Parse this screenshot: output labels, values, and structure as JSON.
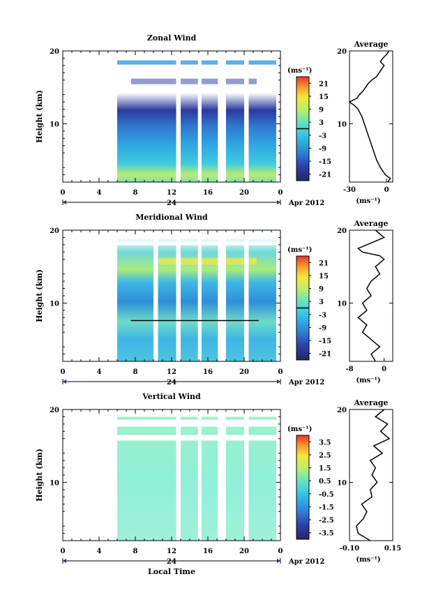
{
  "figure": {
    "xlabel": "Local Time",
    "date_label": "Apr 2012",
    "day_label": "24"
  },
  "colorbar_unit": "(ms⁻¹)",
  "chart_data": [
    {
      "type": "heatmap",
      "title": "Zonal Wind",
      "ylabel": "Height (km)",
      "xlim": [
        0,
        24
      ],
      "ylim": [
        2,
        20
      ],
      "x_ticks": [
        "0",
        "4",
        "8",
        "12",
        "16",
        "20",
        "0"
      ],
      "y_ticks": [
        "10",
        "20"
      ],
      "data_start_hour": 6,
      "gap_hours": [
        [
          12.5,
          13.0
        ],
        [
          14.9,
          15.3
        ],
        [
          17.1,
          18.0
        ],
        [
          20.0,
          20.5
        ]
      ],
      "colorbar": {
        "ticks": [
          "21",
          "15",
          "9",
          "3",
          "-3",
          "-9",
          "-15",
          "-21"
        ],
        "range": [
          -24,
          24
        ]
      },
      "profile": {
        "title": "Average",
        "xlim": [
          -30,
          5
        ],
        "x_ticks": [
          "-30",
          "0"
        ],
        "xlabel": "(ms⁻¹)",
        "heights": [
          2,
          2.5,
          3,
          3.5,
          4,
          5,
          6,
          7,
          8,
          9,
          10,
          11,
          12,
          12.5,
          13,
          13.5,
          14,
          14.5,
          15,
          15.5,
          16,
          16.5,
          17,
          17.5,
          18,
          18.5,
          19,
          19.5,
          20
        ],
        "values": [
          1,
          3,
          -1,
          -3,
          -5,
          -8,
          -10,
          -12,
          -14,
          -16,
          -18,
          -20,
          -23,
          -26,
          -30,
          -24,
          -22,
          -19,
          -17,
          -15,
          -12,
          -8,
          -6,
          -4,
          -2,
          -5,
          -3,
          0,
          2
        ]
      }
    },
    {
      "type": "heatmap",
      "title": "Meridional Wind",
      "ylabel": "Height (km)",
      "xlim": [
        0,
        24
      ],
      "ylim": [
        2,
        20
      ],
      "x_ticks": [
        "0",
        "4",
        "8",
        "12",
        "16",
        "20",
        "0"
      ],
      "y_ticks": [
        "10",
        "20"
      ],
      "data_start_hour": 6,
      "gap_hours": [
        [
          10.0,
          10.5
        ],
        [
          12.5,
          13.0
        ],
        [
          14.9,
          15.3
        ],
        [
          17.1,
          18.0
        ],
        [
          20.0,
          20.5
        ]
      ],
      "colorbar": {
        "ticks": [
          "21",
          "15",
          "9",
          "3",
          "-3",
          "-9",
          "-15",
          "-21"
        ],
        "range": [
          -24,
          24
        ]
      },
      "profile": {
        "title": "Average",
        "xlim": [
          -8,
          2
        ],
        "x_ticks": [
          "-8",
          "0"
        ],
        "xlabel": "(ms⁻¹)",
        "heights": [
          2,
          3,
          4,
          5,
          6,
          7,
          8,
          9,
          10,
          11,
          12,
          13,
          14,
          15,
          16,
          16.5,
          17,
          17.5,
          18,
          18.5,
          19,
          19.5,
          20
        ],
        "values": [
          -2,
          -3,
          -1,
          -3,
          -5,
          -4,
          -6,
          -4,
          -5,
          -3,
          -4,
          -3,
          -1,
          -2,
          0,
          -1,
          -5,
          -6,
          -4,
          -2,
          0,
          -1,
          -2
        ]
      }
    },
    {
      "type": "heatmap",
      "title": "Vertical Wind",
      "ylabel": "Height (km)",
      "xlim": [
        0,
        24
      ],
      "ylim": [
        2,
        20
      ],
      "x_ticks": [
        "0",
        "4",
        "8",
        "12",
        "16",
        "20",
        "0"
      ],
      "y_ticks": [
        "10",
        "20"
      ],
      "data_start_hour": 6,
      "gap_hours": [
        [
          12.5,
          13.0
        ],
        [
          14.9,
          15.3
        ],
        [
          17.1,
          18.0
        ],
        [
          20.0,
          20.5
        ]
      ],
      "colorbar": {
        "ticks": [
          "3.5",
          "2.5",
          "1.5",
          "0.5",
          "-0.5",
          "-1.5",
          "-2.5",
          "-3.5"
        ],
        "range": [
          -4,
          4
        ]
      },
      "profile": {
        "title": "Average",
        "xlim": [
          -0.1,
          0.15
        ],
        "x_ticks": [
          "-0.10",
          "0.15"
        ],
        "xlabel": "(ms⁻¹)",
        "heights": [
          2,
          3,
          4,
          5,
          6,
          7,
          8,
          9,
          10,
          11,
          12,
          13,
          14,
          15,
          16,
          17,
          18,
          19,
          20
        ],
        "values": [
          0.02,
          -0.05,
          -0.06,
          -0.02,
          0.0,
          -0.03,
          0.03,
          0.02,
          0.06,
          0.03,
          0.05,
          0.02,
          0.09,
          0.04,
          0.13,
          0.08,
          0.12,
          0.05,
          0.1
        ]
      }
    }
  ]
}
